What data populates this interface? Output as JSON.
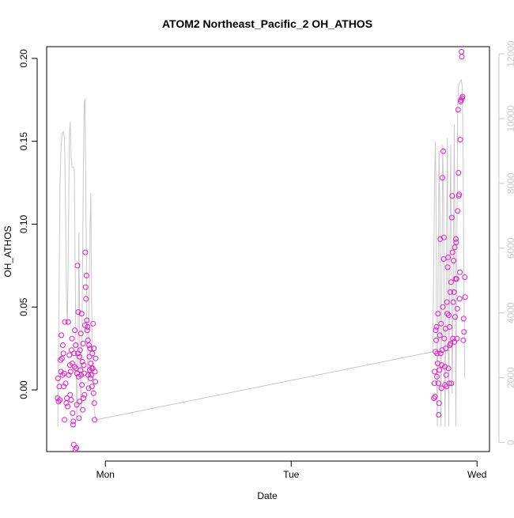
{
  "chart_data": {
    "type": "scatter",
    "title": "ATOM2 Northeast_Pacific_2 OH_ATHOS",
    "xlabel": "Date",
    "ylabel": "OH_ATHOS",
    "x_ticks": [
      {
        "day": 1.0,
        "label": "Mon"
      },
      {
        "day": 2.0,
        "label": "Tue"
      },
      {
        "day": 3.0,
        "label": "Wed"
      }
    ],
    "xlim": [
      0.684,
      3.067
    ],
    "ylim": [
      -0.0372,
      0.2071
    ],
    "y_ticks": [
      0.0,
      0.05,
      0.1,
      0.15,
      0.2
    ],
    "y_tick_labels": [
      "0.00",
      "0.05",
      "0.10",
      "0.15",
      "0.20"
    ],
    "right_axis": {
      "label": "",
      "ylim": [
        -280,
        12220
      ],
      "ticks": [
        0,
        2000,
        4000,
        6000,
        8000,
        10000,
        12000
      ],
      "tick_labels": [
        "0",
        "2000",
        "4000",
        "6000",
        "8000",
        "10000",
        "12000"
      ]
    },
    "colors": {
      "points": "#e619c8",
      "line": "#c8c8c8",
      "axis": "#000000",
      "right_axis": "#c8c8c8"
    },
    "series": [
      {
        "type": "scatter",
        "values": [
          [
            0.743,
            -0.005
          ],
          [
            0.745,
            0.007
          ],
          [
            0.748,
            -0.007
          ],
          [
            0.752,
            0.002
          ],
          [
            0.755,
            -0.006
          ],
          [
            0.758,
            0.018
          ],
          [
            0.761,
            0.011
          ],
          [
            0.763,
            0.033
          ],
          [
            0.766,
            0.019
          ],
          [
            0.769,
            0.009
          ],
          [
            0.771,
            0.027
          ],
          [
            0.774,
            0.022
          ],
          [
            0.776,
            0.002
          ],
          [
            0.778,
            0.01
          ],
          [
            0.78,
            -0.018
          ],
          [
            0.782,
            0.041
          ],
          [
            0.786,
            0.004
          ],
          [
            0.79,
            -0.008
          ],
          [
            0.793,
            -0.005
          ],
          [
            0.797,
            -0.01
          ],
          [
            0.8,
            0.041
          ],
          [
            0.803,
            0.009
          ],
          [
            0.806,
            0.021
          ],
          [
            0.809,
            0.015
          ],
          [
            0.811,
            -0.003
          ],
          [
            0.813,
            0.011
          ],
          [
            0.816,
            -0.006
          ],
          [
            0.818,
            0.024
          ],
          [
            0.82,
            0.031
          ],
          [
            0.822,
            0.016
          ],
          [
            0.824,
            -0.014
          ],
          [
            0.826,
            -0.021
          ],
          [
            0.828,
            -0.019
          ],
          [
            0.83,
            -0.033
          ],
          [
            0.832,
            0.022
          ],
          [
            0.834,
            0.014
          ],
          [
            0.836,
            0.036
          ],
          [
            0.838,
            -0.036
          ],
          [
            0.84,
            0.027
          ],
          [
            0.842,
            0.013
          ],
          [
            0.844,
            -0.035
          ],
          [
            0.846,
            -0.009
          ],
          [
            0.848,
            0.01
          ],
          [
            0.85,
            0.075
          ],
          [
            0.852,
            0.022
          ],
          [
            0.854,
            0.047
          ],
          [
            0.856,
            0.008
          ],
          [
            0.858,
            -0.017
          ],
          [
            0.86,
            0.02
          ],
          [
            0.862,
            -0.007
          ],
          [
            0.864,
            0.024
          ],
          [
            0.866,
            0.012
          ],
          [
            0.868,
            0.034
          ],
          [
            0.87,
            0.009
          ],
          [
            0.872,
            0.046
          ],
          [
            0.874,
            0.003
          ],
          [
            0.876,
            0.017
          ],
          [
            0.878,
            -0.012
          ],
          [
            0.88,
            0.028
          ],
          [
            0.882,
            -0.005
          ],
          [
            0.884,
            0.015
          ],
          [
            0.886,
            0.01
          ],
          [
            0.888,
            -0.003
          ],
          [
            0.89,
            0.039
          ],
          [
            0.892,
            0.083
          ],
          [
            0.894,
            0.062
          ],
          [
            0.896,
            0.055
          ],
          [
            0.898,
            0.069
          ],
          [
            0.9,
            0.042
          ],
          [
            0.902,
            0.036
          ],
          [
            0.904,
            0.038
          ],
          [
            0.906,
            0.03
          ],
          [
            0.908,
            0.009
          ],
          [
            0.91,
            0.001
          ],
          [
            0.912,
            0.027
          ],
          [
            0.914,
            0.02
          ],
          [
            0.916,
            0.012
          ],
          [
            0.918,
            0.025
          ],
          [
            0.92,
            0.007
          ],
          [
            0.922,
            0.016
          ],
          [
            0.924,
            0.009
          ],
          [
            0.926,
            0.013
          ],
          [
            0.928,
            0.002
          ],
          [
            0.93,
            0.022
          ],
          [
            0.932,
            0.013
          ],
          [
            0.934,
            0.04
          ],
          [
            0.936,
            -0.002
          ],
          [
            0.938,
            0.025
          ],
          [
            0.94,
            -0.008
          ],
          [
            0.942,
            -0.018
          ],
          [
            0.944,
            0.011
          ],
          [
            0.946,
            0.005
          ],
          [
            0.948,
            0.019
          ],
          [
            2.768,
            -0.005
          ],
          [
            2.77,
            0.004
          ],
          [
            2.772,
            0.011
          ],
          [
            2.774,
            -0.004
          ],
          [
            2.776,
            0.023
          ],
          [
            2.778,
            0.036
          ],
          [
            2.78,
            0.03
          ],
          [
            2.782,
            0.038
          ],
          [
            2.784,
            0.008
          ],
          [
            2.786,
            0.022
          ],
          [
            2.788,
            0.016
          ],
          [
            2.79,
            0.046
          ],
          [
            2.792,
            0.004
          ],
          [
            2.794,
            -0.015
          ],
          [
            2.796,
            -0.008
          ],
          [
            2.798,
            0.012
          ],
          [
            2.8,
            0.033
          ],
          [
            2.802,
            0.091
          ],
          [
            2.804,
            0.022
          ],
          [
            2.806,
            0.04
          ],
          [
            2.808,
            0.001
          ],
          [
            2.81,
            0.015
          ],
          [
            2.812,
            0.024
          ],
          [
            2.814,
            0.128
          ],
          [
            2.816,
            0.05
          ],
          [
            2.818,
            0.144
          ],
          [
            2.82,
            0.079
          ],
          [
            2.822,
            0.092
          ],
          [
            2.824,
            0.031
          ],
          [
            2.826,
            0.014
          ],
          [
            2.828,
            0.003
          ],
          [
            2.83,
            0.037
          ],
          [
            2.832,
            0.025
          ],
          [
            2.834,
            0.009
          ],
          [
            2.836,
            0.002
          ],
          [
            2.838,
            0.053
          ],
          [
            2.84,
            0.046
          ],
          [
            2.842,
            0.074
          ],
          [
            2.844,
            0.08
          ],
          [
            2.846,
            0.013
          ],
          [
            2.848,
            0.045
          ],
          [
            2.85,
            0.004
          ],
          [
            2.852,
            0.038
          ],
          [
            2.854,
            0.027
          ],
          [
            2.856,
            0.059
          ],
          [
            2.858,
            0.028
          ],
          [
            2.86,
            0.065
          ],
          [
            2.862,
            0.004
          ],
          [
            2.864,
            0.104
          ],
          [
            2.866,
            0.117
          ],
          [
            2.868,
            0.083
          ],
          [
            2.87,
            0.031
          ],
          [
            2.872,
            0.053
          ],
          [
            2.874,
            0.078
          ],
          [
            2.876,
            0.059
          ],
          [
            2.878,
            0.029
          ],
          [
            2.88,
            0.086
          ],
          [
            2.882,
            0.044
          ],
          [
            2.884,
            0.067
          ],
          [
            2.886,
            0.091
          ],
          [
            2.888,
            0.089
          ],
          [
            2.89,
            0.067
          ],
          [
            2.892,
            0.031
          ],
          [
            2.894,
            0.049
          ],
          [
            2.896,
            0.108
          ],
          [
            2.898,
            0.169
          ],
          [
            2.9,
            0.131
          ],
          [
            2.902,
            0.117
          ],
          [
            2.904,
            0.118
          ],
          [
            2.906,
            0.055
          ],
          [
            2.908,
            0.071
          ],
          [
            2.91,
            0.151
          ],
          [
            2.912,
            0.174
          ],
          [
            2.914,
            0.175
          ],
          [
            2.916,
            0.204
          ],
          [
            2.918,
            0.201
          ],
          [
            2.92,
            0.176
          ],
          [
            2.922,
            0.177
          ],
          [
            2.926,
            0.03
          ],
          [
            2.928,
            0.043
          ],
          [
            2.93,
            0.035
          ],
          [
            2.934,
            0.068
          ],
          [
            2.936,
            0.056
          ]
        ]
      },
      {
        "type": "line",
        "axis": "right",
        "values": [
          [
            0.744,
            500
          ],
          [
            0.75,
            4000
          ],
          [
            0.756,
            8000
          ],
          [
            0.762,
            9200
          ],
          [
            0.768,
            9550
          ],
          [
            0.774,
            9600
          ],
          [
            0.78,
            9400
          ],
          [
            0.786,
            7000
          ],
          [
            0.791,
            4500
          ],
          [
            0.795,
            3600
          ],
          [
            0.8,
            5500
          ],
          [
            0.806,
            9500
          ],
          [
            0.811,
            9900
          ],
          [
            0.816,
            8800
          ],
          [
            0.821,
            8500
          ],
          [
            0.827,
            8500
          ],
          [
            0.833,
            8450
          ],
          [
            0.838,
            5000
          ],
          [
            0.842,
            2500
          ],
          [
            0.846,
            800
          ],
          [
            0.85,
            1500
          ],
          [
            0.854,
            3500
          ],
          [
            0.858,
            6500
          ],
          [
            0.862,
            3200
          ],
          [
            0.866,
            1500
          ],
          [
            0.87,
            1000
          ],
          [
            0.874,
            3000
          ],
          [
            0.878,
            6000
          ],
          [
            0.882,
            8500
          ],
          [
            0.886,
            10500
          ],
          [
            0.89,
            10600
          ],
          [
            0.894,
            8500
          ],
          [
            0.898,
            5500
          ],
          [
            0.902,
            2800
          ],
          [
            0.906,
            1800
          ],
          [
            0.91,
            2800
          ],
          [
            0.914,
            5000
          ],
          [
            0.918,
            6800
          ],
          [
            0.922,
            7700
          ],
          [
            0.926,
            4200
          ],
          [
            0.93,
            3000
          ],
          [
            0.935,
            1500
          ],
          [
            0.94,
            1000
          ],
          [
            0.948,
            700
          ],
          [
            2.762,
            2800
          ],
          [
            2.768,
            6000
          ],
          [
            2.772,
            8300
          ],
          [
            2.776,
            9300
          ],
          [
            2.78,
            7000
          ],
          [
            2.782,
            3000
          ],
          [
            2.786,
            500
          ],
          [
            2.79,
            4500
          ],
          [
            2.796,
            9000
          ],
          [
            2.8,
            7000
          ],
          [
            2.802,
            3000
          ],
          [
            2.806,
            500
          ],
          [
            2.81,
            4500
          ],
          [
            2.815,
            9200
          ],
          [
            2.82,
            7500
          ],
          [
            2.824,
            3000
          ],
          [
            2.828,
            500
          ],
          [
            2.834,
            4800
          ],
          [
            2.84,
            9400
          ],
          [
            2.844,
            5000
          ],
          [
            2.848,
            500
          ],
          [
            2.852,
            4500
          ],
          [
            2.858,
            9200
          ],
          [
            2.862,
            6000
          ],
          [
            2.866,
            1500
          ],
          [
            2.872,
            5000
          ],
          [
            2.877,
            9800
          ],
          [
            2.882,
            6000
          ],
          [
            2.886,
            500
          ],
          [
            2.89,
            4500
          ],
          [
            2.896,
            10500
          ],
          [
            2.9,
            11000
          ],
          [
            2.905,
            11100
          ],
          [
            2.91,
            11150
          ],
          [
            2.915,
            11200
          ],
          [
            2.92,
            11000
          ],
          [
            2.925,
            9000
          ],
          [
            2.928,
            6000
          ],
          [
            2.931,
            4000
          ],
          [
            2.934,
            2000
          ]
        ]
      }
    ]
  }
}
